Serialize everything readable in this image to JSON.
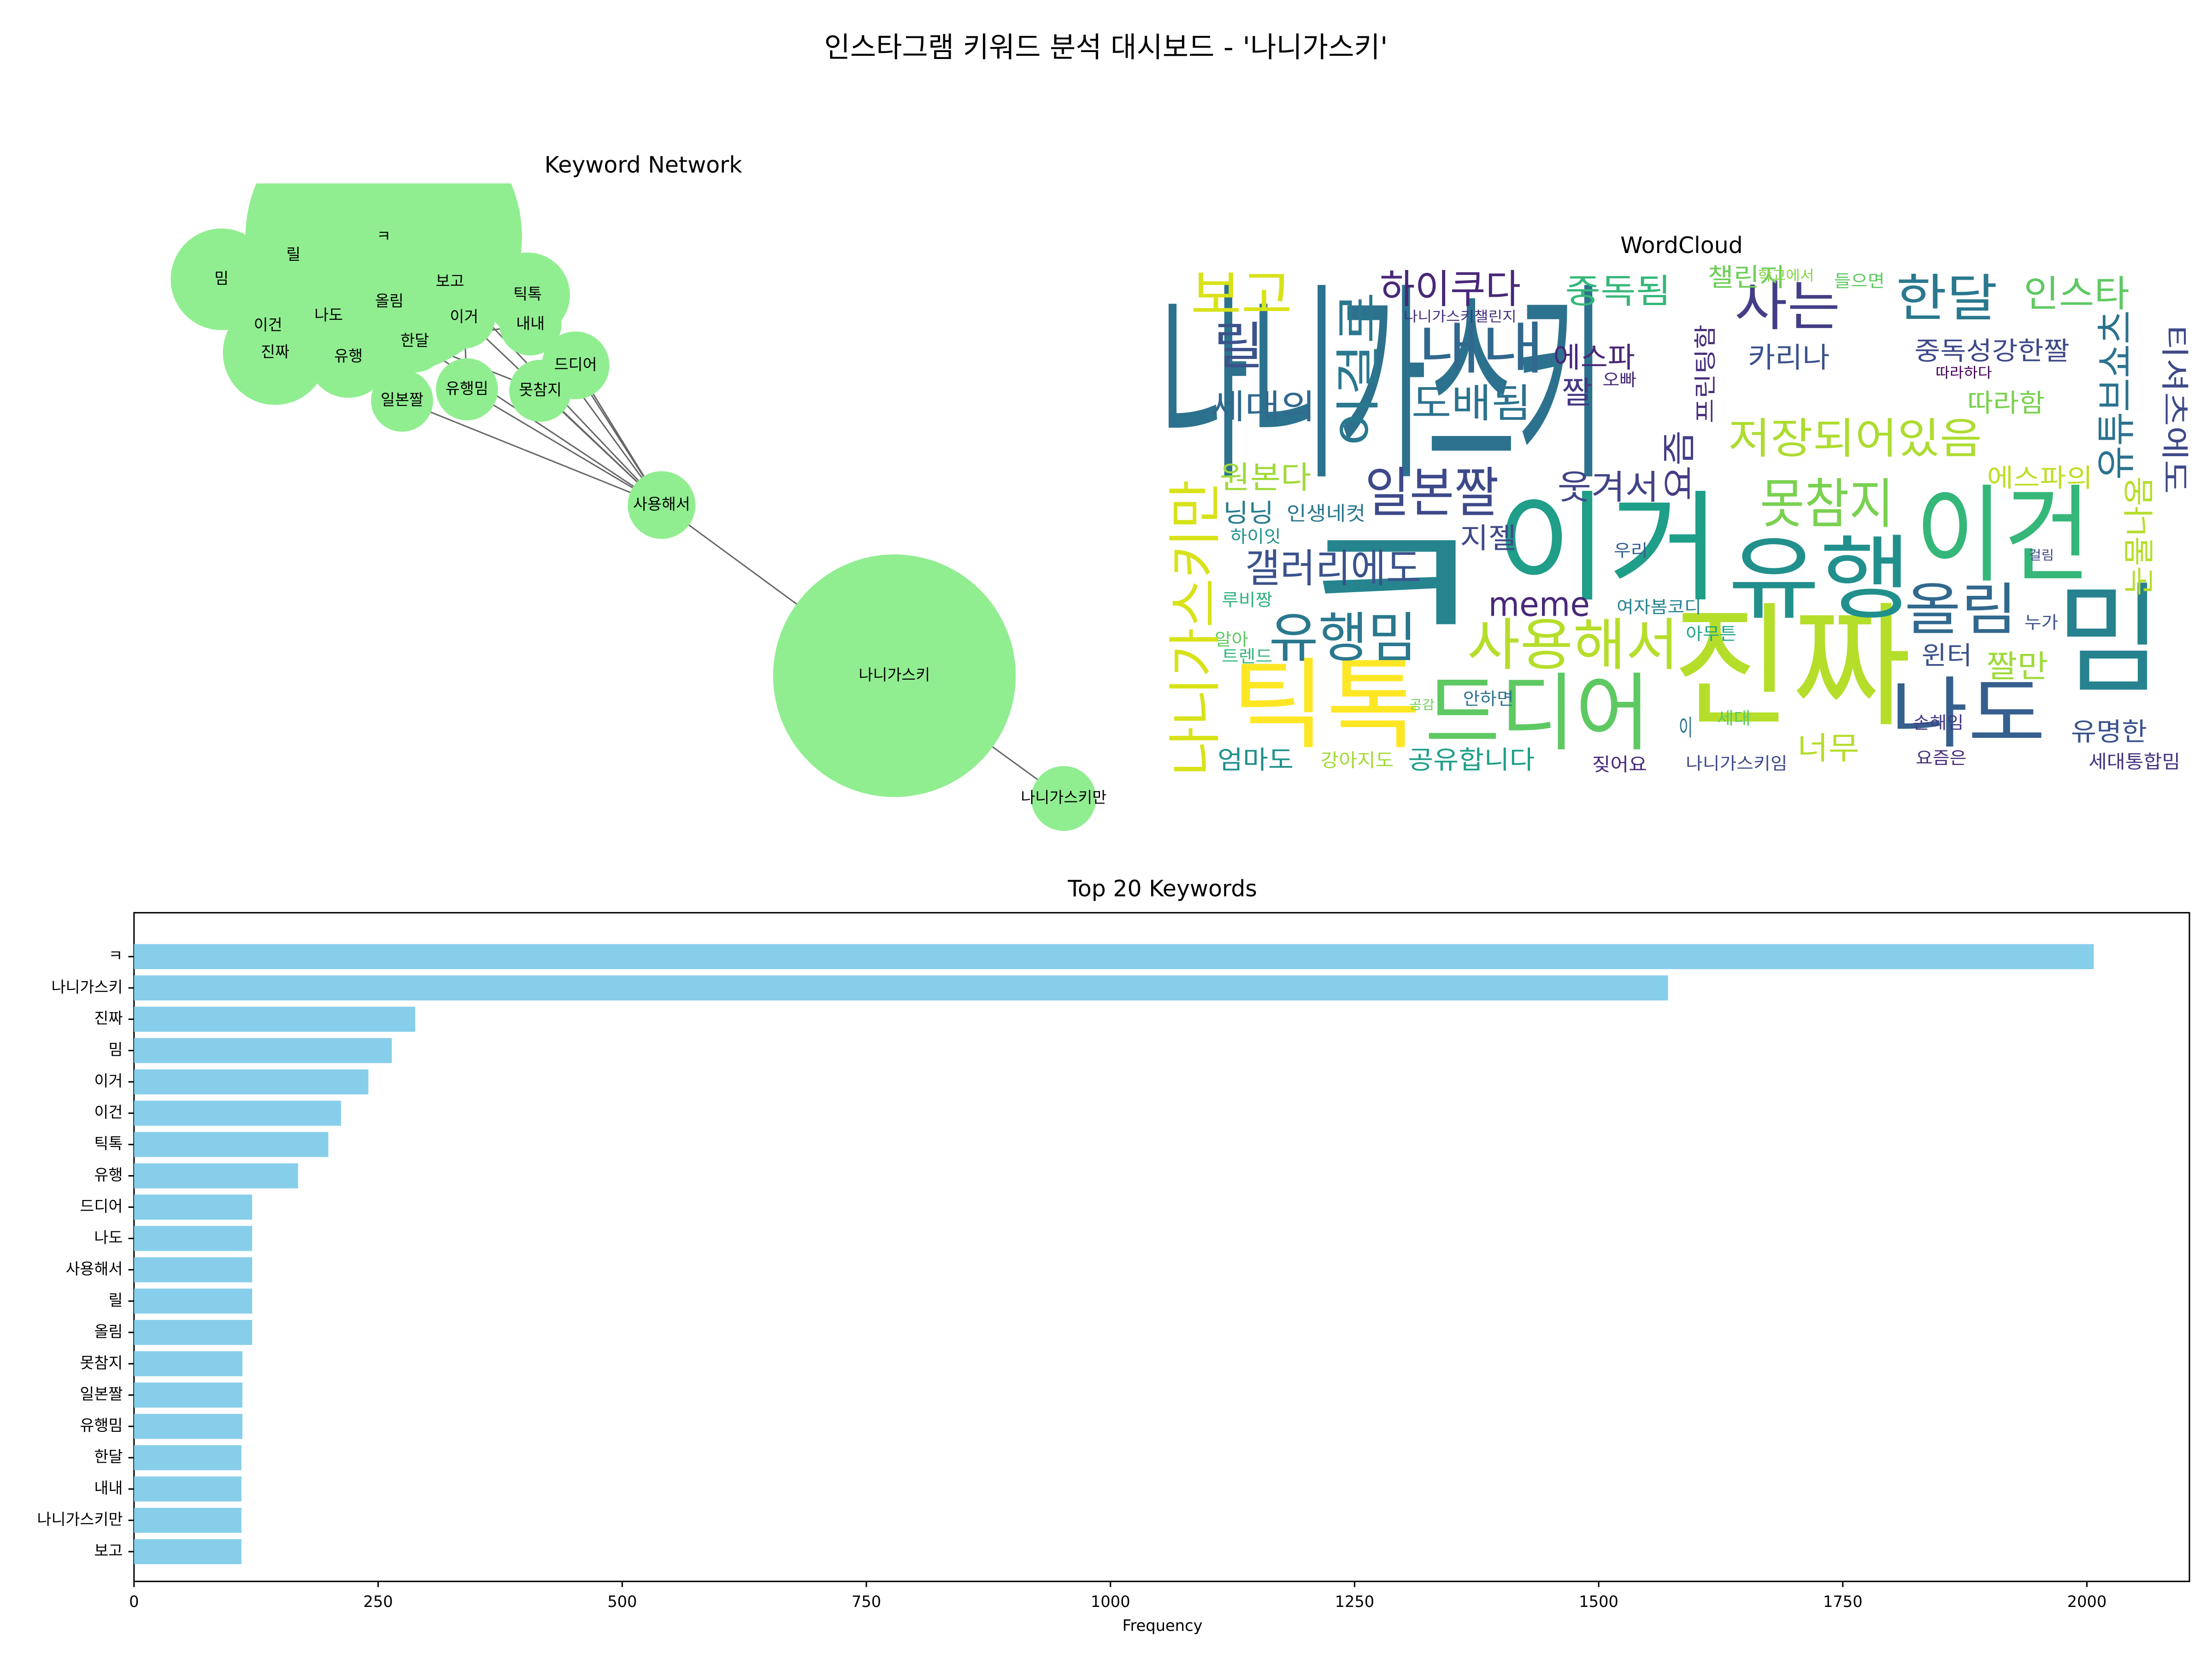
{
  "title": "인스타그램 키워드 분석 대시보드 - '나니가스키'",
  "chart_data": [
    {
      "type": "network",
      "title": "Keyword Network",
      "color": "#90ee90",
      "nodes": [
        "ㅋ",
        "밈",
        "릴",
        "보고",
        "틱톡",
        "이건",
        "나도",
        "올림",
        "이거",
        "내내",
        "진짜",
        "유행",
        "한달",
        "드디어",
        "유행밈",
        "못참지",
        "일본짤",
        "사용해서",
        "나니가스키",
        "나니가스키만"
      ]
    },
    {
      "type": "wordcloud",
      "title": "WordCloud",
      "words": [
        "나니가스키",
        "ㅋ",
        "진짜",
        "이거",
        "유행",
        "이건",
        "밈",
        "틱톡",
        "드디어",
        "나도",
        "사용해서",
        "유행밈",
        "갤러리에도",
        "일본짤",
        "못참지",
        "저장되어있음",
        "올림",
        "보고",
        "릴",
        "하이쿠다",
        "내내",
        "도배됨",
        "세대의",
        "중독됨",
        "사는",
        "한달",
        "인스타",
        "챌린지",
        "에스파",
        "카리나",
        "짤",
        "중독성강한짤",
        "따라함",
        "웃겨서",
        "에스파의",
        "원본다",
        "닝닝",
        "인생네컷",
        "지젤",
        "meme",
        "윈터",
        "짤만",
        "유명한",
        "엄마도",
        "공유합니다",
        "너무",
        "강아지도",
        "짖어요",
        "나니가스키임",
        "요즘은",
        "세대통합밈",
        "여자봄코디",
        "우리",
        "루비짱",
        "하이잇",
        "알아",
        "트렌드",
        "안하면",
        "공감",
        "세대",
        "이",
        "아무튼",
        "누가",
        "손해임",
        "오빠",
        "따라하다",
        "나니가스키챌린지",
        "학교에서",
        "들으면",
        "걸림",
        "나니가스키만",
        "유튜브쇼츠",
        "티셔츠에도",
        "눈물나옴",
        "이걸로",
        "요즘",
        "프린팅함"
      ]
    },
    {
      "type": "barh",
      "title": "Top 20 Keywords",
      "x_label": "Frequency",
      "color": "#87ceeb",
      "categories": [
        "ㅋ",
        "나니가스키",
        "진짜",
        "밈",
        "이거",
        "이건",
        "틱톡",
        "유행",
        "드디어",
        "나도",
        "사용해서",
        "릴",
        "올림",
        "못참지",
        "일본짤",
        "유행밈",
        "한달",
        "내내",
        "나니가스키만",
        "보고"
      ],
      "values": [
        2007,
        1571,
        288,
        264,
        240,
        212,
        199,
        168,
        121,
        121,
        121,
        121,
        121,
        111,
        111,
        111,
        110,
        110,
        110,
        110
      ],
      "xlim": [
        0,
        2105
      ],
      "xticks": [
        0,
        250,
        500,
        750,
        1000,
        1250,
        1500,
        1750,
        2000
      ]
    }
  ]
}
